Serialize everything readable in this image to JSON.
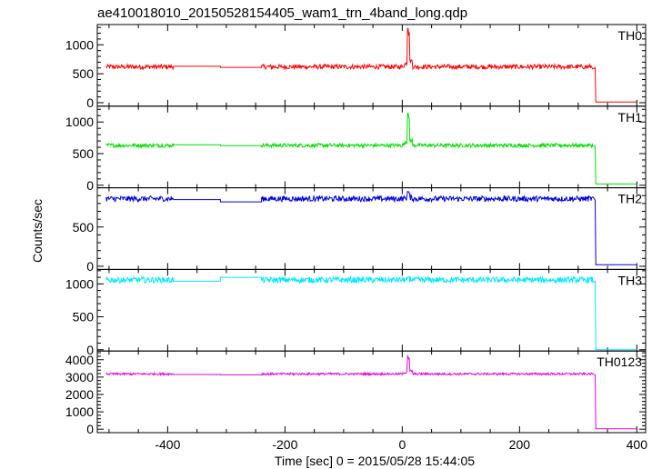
{
  "chart_data": {
    "type": "line",
    "title": "ae410018010_20150528154405_wam1_trn_4band_long.qdp",
    "xlabel": "Time [sec] 0 = 2015/05/28 15:44:05",
    "ylabel": "Counts/sec",
    "xlim": [
      -520,
      415
    ],
    "x_ticks": [
      -400,
      -200,
      0,
      200,
      400
    ],
    "panels": [
      {
        "name": "TH0",
        "color": "#ff0000",
        "ylim": [
          -60,
          1350
        ],
        "y_ticks": [
          0,
          500,
          1000
        ],
        "baseline": 620,
        "noise": 40,
        "gap1_level": 630,
        "gap2_level": 610,
        "peak_max": 1300,
        "after_level": 10,
        "points": [
          {
            "x": -505,
            "y": 620
          },
          {
            "x": -390,
            "y": 640
          },
          {
            "x": -310,
            "y": 630
          },
          {
            "x": -240,
            "y": 610
          },
          {
            "x": 0,
            "y": 700
          },
          {
            "x": 10,
            "y": 1300
          },
          {
            "x": 20,
            "y": 660
          },
          {
            "x": 325,
            "y": 650
          },
          {
            "x": 330,
            "y": 10
          },
          {
            "x": 400,
            "y": 10
          }
        ]
      },
      {
        "name": "TH1",
        "color": "#00e000",
        "ylim": [
          -40,
          1250
        ],
        "y_ticks": [
          0,
          500,
          1000
        ],
        "baseline": 630,
        "noise": 30,
        "gap1_level": 640,
        "gap2_level": 625,
        "peak_max": 1150,
        "after_level": 20,
        "points": [
          {
            "x": -505,
            "y": 630
          },
          {
            "x": -390,
            "y": 640
          },
          {
            "x": -310,
            "y": 625
          },
          {
            "x": -240,
            "y": 625
          },
          {
            "x": 0,
            "y": 680
          },
          {
            "x": 10,
            "y": 1150
          },
          {
            "x": 20,
            "y": 650
          },
          {
            "x": 325,
            "y": 610
          },
          {
            "x": 330,
            "y": 20
          },
          {
            "x": 400,
            "y": 20
          }
        ]
      },
      {
        "name": "TH2",
        "color": "#0000e0",
        "ylim": [
          -40,
          1000
        ],
        "y_ticks": [
          0,
          500
        ],
        "baseline": 860,
        "noise": 35,
        "gap1_level": 850,
        "gap2_level": 820,
        "peak_max": 960,
        "after_level": 20,
        "points": [
          {
            "x": -505,
            "y": 870
          },
          {
            "x": -390,
            "y": 850
          },
          {
            "x": -310,
            "y": 820
          },
          {
            "x": -240,
            "y": 880
          },
          {
            "x": 0,
            "y": 860
          },
          {
            "x": 10,
            "y": 960
          },
          {
            "x": 20,
            "y": 850
          },
          {
            "x": 325,
            "y": 830
          },
          {
            "x": 330,
            "y": 20
          },
          {
            "x": 400,
            "y": 20
          }
        ]
      },
      {
        "name": "TH3",
        "color": "#00e8ff",
        "ylim": [
          -20,
          1220
        ],
        "y_ticks": [
          0,
          500,
          1000
        ],
        "baseline": 1060,
        "noise": 45,
        "gap1_level": 1040,
        "gap2_level": 1100,
        "peak_max": 1120,
        "after_level": 0,
        "points": [
          {
            "x": -505,
            "y": 1060
          },
          {
            "x": -390,
            "y": 1040
          },
          {
            "x": -310,
            "y": 1100
          },
          {
            "x": -240,
            "y": 1080
          },
          {
            "x": 0,
            "y": 1050
          },
          {
            "x": 325,
            "y": 1000
          },
          {
            "x": 330,
            "y": 0
          },
          {
            "x": 400,
            "y": 0
          }
        ]
      },
      {
        "name": "TH0123",
        "color": "#e000e0",
        "ylim": [
          -200,
          4500
        ],
        "y_ticks": [
          0,
          1000,
          2000,
          3000,
          4000
        ],
        "baseline": 3180,
        "noise": 60,
        "gap1_level": 3150,
        "gap2_level": 3130,
        "peak_max": 4300,
        "after_level": 20,
        "points": [
          {
            "x": -505,
            "y": 3180
          },
          {
            "x": -390,
            "y": 3150
          },
          {
            "x": -310,
            "y": 3130
          },
          {
            "x": -240,
            "y": 3200
          },
          {
            "x": 0,
            "y": 3400
          },
          {
            "x": 10,
            "y": 4300
          },
          {
            "x": 20,
            "y": 3200
          },
          {
            "x": 325,
            "y": 3050
          },
          {
            "x": 330,
            "y": 20
          },
          {
            "x": 400,
            "y": 20
          }
        ]
      }
    ]
  }
}
